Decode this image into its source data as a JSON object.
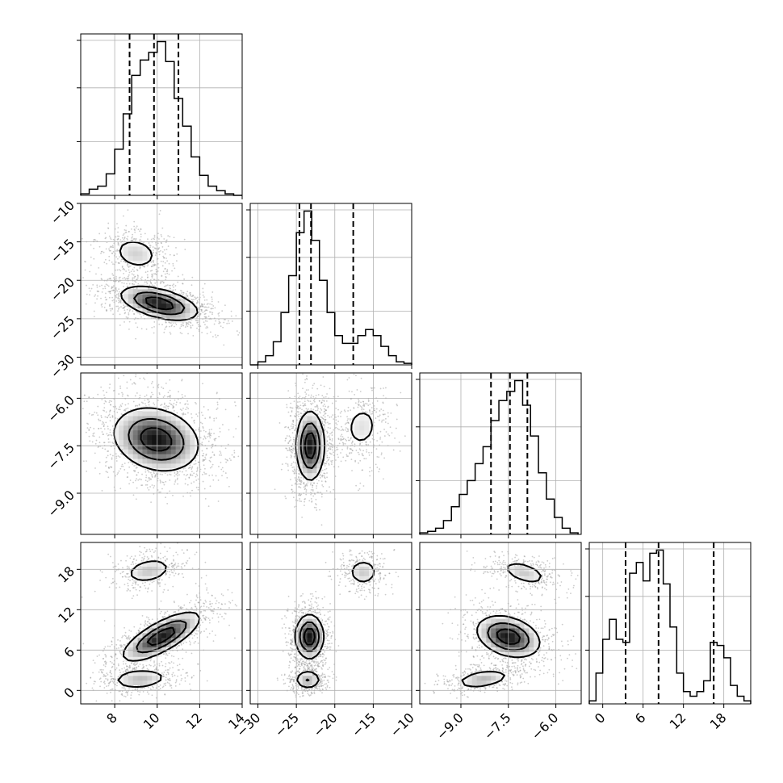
{
  "chart_data": {
    "type": "corner",
    "parameters": 4,
    "axes": [
      {
        "range": [
          6.4,
          14
        ],
        "ticks": [
          8,
          10,
          12,
          14
        ],
        "tick_labels": [
          "8",
          "10",
          "12",
          "14"
        ]
      },
      {
        "range": [
          -31,
          -10
        ],
        "ticks": [
          -30,
          -25,
          -20,
          -15,
          -10
        ],
        "tick_labels": [
          "−30",
          "−25",
          "−20",
          "−15",
          "−10"
        ]
      },
      {
        "range": [
          -10.3,
          -5.2
        ],
        "ticks": [
          -9.0,
          -7.5,
          -6.0
        ],
        "tick_labels": [
          "−9.0",
          "−7.5",
          "−6.0"
        ]
      },
      {
        "range": [
          -2,
          22
        ],
        "ticks": [
          0,
          6,
          12,
          18
        ],
        "tick_labels": [
          "0",
          "6",
          "12",
          "18"
        ]
      }
    ],
    "histograms": [
      {
        "param": 0,
        "bin_edges": [
          6.4,
          6.8,
          7.2,
          7.6,
          8.0,
          8.4,
          8.8,
          9.2,
          9.6,
          10.0,
          10.4,
          10.8,
          11.2,
          11.6,
          12.0,
          12.4,
          12.8,
          13.2,
          13.6,
          14.0
        ],
        "counts": [
          1,
          4,
          6,
          14,
          30,
          53,
          78,
          88,
          93,
          100,
          87,
          63,
          45,
          25,
          13,
          6,
          3,
          1,
          0
        ],
        "quantiles": [
          8.7,
          9.85,
          11.0
        ]
      },
      {
        "param": 1,
        "bin_edges": [
          -31,
          -30,
          -29,
          -28,
          -27,
          -26,
          -25,
          -24,
          -23,
          -22,
          -21,
          -20,
          -19,
          -18,
          -17,
          -16,
          -15,
          -14,
          -13,
          -12,
          -11,
          -10
        ],
        "counts": [
          0,
          2,
          6,
          15,
          34,
          58,
          86,
          100,
          81,
          55,
          34,
          19,
          14,
          14,
          19,
          23,
          19,
          12,
          6,
          2,
          1
        ],
        "quantiles": [
          -24.6,
          -23.1,
          -17.6
        ]
      },
      {
        "param": 2,
        "bin_edges": [
          -10.3,
          -10.05,
          -9.8,
          -9.55,
          -9.3,
          -9.05,
          -8.8,
          -8.55,
          -8.3,
          -8.05,
          -7.8,
          -7.55,
          -7.3,
          -7.05,
          -6.8,
          -6.55,
          -6.3,
          -6.05,
          -5.8,
          -5.55,
          -5.3
        ],
        "counts": [
          1,
          2,
          4,
          9,
          18,
          26,
          35,
          46,
          57,
          74,
          87,
          93,
          100,
          84,
          64,
          40,
          23,
          11,
          4,
          1
        ],
        "quantiles": [
          -8.05,
          -7.45,
          -6.9
        ]
      },
      {
        "param": 3,
        "bin_edges": [
          -2,
          -1,
          0,
          1,
          2,
          3,
          4,
          5,
          6,
          7,
          8,
          9,
          10,
          11,
          12,
          13,
          14,
          15,
          16,
          17,
          18,
          19,
          20,
          21,
          22
        ],
        "counts": [
          2,
          20,
          42,
          55,
          42,
          40,
          85,
          92,
          80,
          98,
          100,
          78,
          50,
          20,
          8,
          5,
          8,
          15,
          40,
          38,
          30,
          12,
          5,
          2
        ],
        "quantiles": [
          3.4,
          8.3,
          16.5
        ]
      }
    ],
    "joint_densities": [
      {
        "x_param": 0,
        "y_param": 1,
        "modes": [
          {
            "x": 10.1,
            "y": -23.0,
            "sx": 1.0,
            "sy": 1.2,
            "rho": -0.5,
            "w": 1.0
          },
          {
            "x": 9.0,
            "y": -16.5,
            "sx": 0.7,
            "sy": 1.4,
            "rho": -0.2,
            "w": 0.35
          }
        ]
      },
      {
        "x_param": 0,
        "y_param": 2,
        "modes": [
          {
            "x": 9.95,
            "y": -7.3,
            "sx": 1.1,
            "sy": 0.55,
            "rho": -0.2,
            "w": 1.0
          }
        ]
      },
      {
        "x_param": 1,
        "y_param": 2,
        "modes": [
          {
            "x": -23.2,
            "y": -7.5,
            "sx": 1.0,
            "sy": 0.6,
            "rho": 0.0,
            "w": 1.0
          },
          {
            "x": -16.5,
            "y": -6.9,
            "sx": 1.6,
            "sy": 0.5,
            "rho": 0.1,
            "w": 0.28
          }
        ]
      },
      {
        "x_param": 0,
        "y_param": 3,
        "modes": [
          {
            "x": 10.2,
            "y": 8.0,
            "sx": 1.0,
            "sy": 2.0,
            "rho": 0.75,
            "w": 1.0
          },
          {
            "x": 9.6,
            "y": 17.8,
            "sx": 0.7,
            "sy": 1.2,
            "rho": 0.3,
            "w": 0.4
          },
          {
            "x": 9.2,
            "y": 1.7,
            "sx": 0.8,
            "sy": 0.9,
            "rho": 0.2,
            "w": 0.45
          }
        ]
      },
      {
        "x_param": 1,
        "y_param": 3,
        "modes": [
          {
            "x": -23.3,
            "y": 8.0,
            "sx": 1.0,
            "sy": 1.8,
            "rho": 0.0,
            "w": 1.0
          },
          {
            "x": -16.3,
            "y": 17.6,
            "sx": 1.2,
            "sy": 1.2,
            "rho": 0.0,
            "w": 0.38
          },
          {
            "x": -23.5,
            "y": 1.6,
            "sx": 1.0,
            "sy": 0.8,
            "rho": 0.0,
            "w": 0.5
          }
        ]
      },
      {
        "x_param": 2,
        "y_param": 3,
        "modes": [
          {
            "x": -7.5,
            "y": 8.0,
            "sx": 0.55,
            "sy": 1.7,
            "rho": -0.3,
            "w": 1.0
          },
          {
            "x": -7.0,
            "y": 17.5,
            "sx": 0.45,
            "sy": 1.1,
            "rho": -0.5,
            "w": 0.4
          },
          {
            "x": -8.3,
            "y": 1.7,
            "sx": 0.5,
            "sy": 0.8,
            "rho": 0.4,
            "w": 0.5
          }
        ]
      }
    ],
    "contour_levels": [
      0.2,
      0.5,
      0.8
    ],
    "grid": true,
    "colors": {
      "line": "#000000",
      "grid": "#b0b0b0",
      "points": "#9a9a9a",
      "density_max": "#000000",
      "background": "#ffffff"
    }
  }
}
